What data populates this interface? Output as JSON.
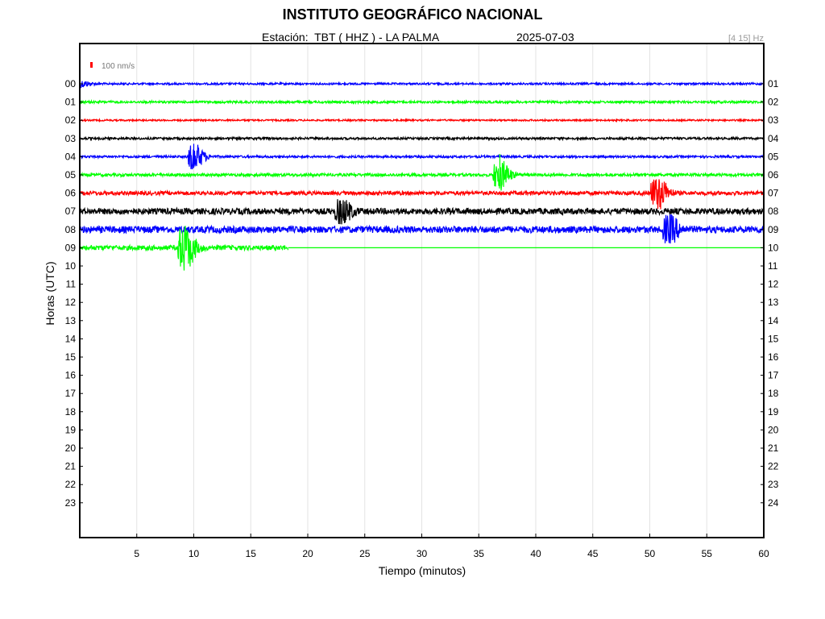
{
  "header": {
    "title": "INSTITUTO GEOGRÁFICO NACIONAL",
    "station": "Estación:  TBT ( HHZ ) - LA PALMA",
    "date": "2025-07-03",
    "filter": "[4 15] Hz"
  },
  "chart_data": {
    "type": "line",
    "xlabel": "Tiempo (minutos)",
    "ylabel": "Horas (UTC)",
    "xlim": [
      0,
      60
    ],
    "x_ticks": [
      5,
      10,
      15,
      20,
      25,
      30,
      35,
      40,
      45,
      50,
      55,
      60
    ],
    "grid": "vertical",
    "scale_label": "100 nm/s",
    "scale_color": "#ff0000",
    "left_labels": [
      "00",
      "01",
      "02",
      "03",
      "04",
      "05",
      "06",
      "07",
      "08",
      "09",
      "10",
      "11",
      "12",
      "13",
      "14",
      "15",
      "16",
      "17",
      "18",
      "19",
      "20",
      "21",
      "22",
      "23"
    ],
    "right_labels": [
      "01",
      "02",
      "03",
      "04",
      "05",
      "06",
      "07",
      "08",
      "09",
      "10",
      "11",
      "12",
      "13",
      "14",
      "15",
      "16",
      "17",
      "18",
      "19",
      "20",
      "21",
      "22",
      "23",
      "24"
    ],
    "colors": [
      "#0000ff",
      "#00ff00",
      "#ff0000",
      "#000000"
    ],
    "traces": [
      {
        "hour": 0,
        "end_minute": 60,
        "noise": 1.2,
        "events": [
          {
            "minute": 0.05,
            "amplitude": 4
          }
        ]
      },
      {
        "hour": 1,
        "end_minute": 60,
        "noise": 1.4,
        "events": []
      },
      {
        "hour": 2,
        "end_minute": 60,
        "noise": 1.0,
        "events": []
      },
      {
        "hour": 3,
        "end_minute": 60,
        "noise": 1.4,
        "events": []
      },
      {
        "hour": 4,
        "end_minute": 60,
        "noise": 1.4,
        "events": [
          {
            "minute": 10.0,
            "amplitude": 16
          }
        ]
      },
      {
        "hour": 5,
        "end_minute": 60,
        "noise": 1.8,
        "events": [
          {
            "minute": 36.85,
            "amplitude": 18
          }
        ]
      },
      {
        "hour": 6,
        "end_minute": 60,
        "noise": 2.4,
        "events": [
          {
            "minute": 50.7,
            "amplitude": 20
          }
        ]
      },
      {
        "hour": 7,
        "end_minute": 60,
        "noise": 3.8,
        "events": [
          {
            "minute": 23.0,
            "amplitude": 14
          }
        ]
      },
      {
        "hour": 8,
        "end_minute": 60,
        "noise": 4.2,
        "events": [
          {
            "minute": 51.7,
            "amplitude": 16
          }
        ]
      },
      {
        "hour": 9,
        "end_minute": 18.3,
        "noise": 3.0,
        "events": [
          {
            "minute": 9.2,
            "amplitude": 28
          }
        ]
      }
    ]
  }
}
